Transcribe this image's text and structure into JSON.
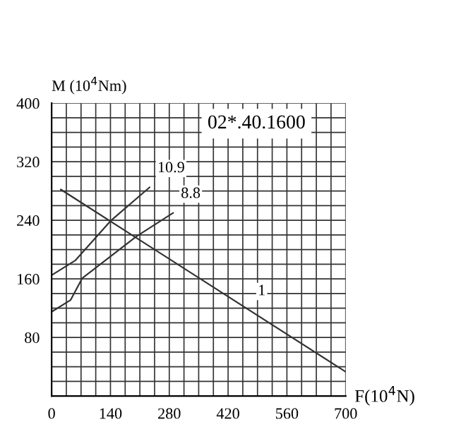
{
  "chart_data": {
    "type": "line",
    "title": "02*.40.1600",
    "xlabel": "F(10$^{4}$N)",
    "ylabel": "M (10$^{4}$Nm)",
    "series": [
      {
        "color": "#333333",
        "x": [
          22,
          196,
          700
        ],
        "values": [
          282,
          218,
          33
        ]
      },
      {
        "color": "#333333",
        "x": [
          0,
          56,
          140,
          233
        ],
        "values": [
          165,
          185,
          239,
          285
        ]
      },
      {
        "color": "#333333",
        "x": [
          0,
          45,
          73,
          202,
          289
        ],
        "values": [
          115,
          131,
          161,
          218,
          250
        ]
      }
    ],
    "annotations": [
      {
        "text": "1",
        "x": 472,
        "y": 117
      },
      {
        "text": "10.9",
        "x": 233,
        "y": 285
      },
      {
        "text": "8.8",
        "x": 289,
        "y": 250
      }
    ],
    "xlim": [
      0,
      700
    ],
    "ylim": [
      0,
      400
    ],
    "xticks": [
      0,
      {
        "value": 35,
        "label": null
      },
      140,
      {
        "value": 70,
        "label": null
      },
      {
        "value": 105,
        "label": null
      },
      {
        "value": 175,
        "label": null
      },
      {
        "value": 210,
        "label": null
      },
      {
        "value": 245,
        "label": null
      },
      280,
      {
        "value": 315,
        "label": null
      },
      {
        "value": 350,
        "label": null
      },
      {
        "value": 385,
        "label": null
      },
      420,
      {
        "value": 455,
        "label": null
      },
      {
        "value": 490,
        "label": null
      },
      {
        "value": 525,
        "label": null
      },
      560,
      {
        "value": 595,
        "label": null
      },
      {
        "value": 630,
        "label": null
      },
      {
        "value": 665,
        "label": null
      },
      700
    ],
    "yticks": [
      {
        "value": 0,
        "label": null
      },
      {
        "value": 20,
        "label": null
      },
      {
        "value": 40,
        "label": null
      },
      {
        "value": 60,
        "label": null
      },
      80,
      {
        "value": 100,
        "label": null
      },
      {
        "value": 120,
        "label": null
      },
      {
        "value": 140,
        "label": null
      },
      160,
      {
        "value": 180,
        "label": null
      },
      {
        "value": 200,
        "label": null
      },
      {
        "value": 220,
        "label": null
      },
      240,
      {
        "value": 260,
        "label": null
      },
      {
        "value": 280,
        "label": null
      },
      {
        "value": 300,
        "label": null
      },
      320,
      {
        "value": 340,
        "label": null
      },
      {
        "value": 360,
        "label": null
      },
      {
        "value": 380,
        "label": null
      },
      400
    ],
    "grid": true,
    "marker": "none",
    "line_style": "solid"
  }
}
